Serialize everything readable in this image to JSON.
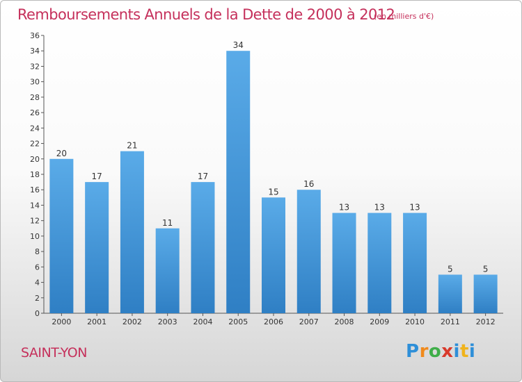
{
  "header": {
    "title": "Remboursements Annuels de la Dette de 2000 à 2012",
    "subtitle": "(en milliers d'€)"
  },
  "footer": {
    "place": "SAINT-YON",
    "logo_text": "Proxiti"
  },
  "colors": {
    "accent": "#c5305b",
    "bar_top": "#5aabe8",
    "bar_bottom": "#2f7fc4"
  },
  "chart_data": {
    "type": "bar",
    "categories": [
      "2000",
      "2001",
      "2002",
      "2003",
      "2004",
      "2005",
      "2006",
      "2007",
      "2008",
      "2009",
      "2010",
      "2011",
      "2012"
    ],
    "values": [
      20,
      17,
      21,
      11,
      17,
      34,
      15,
      16,
      13,
      13,
      13,
      5,
      5
    ],
    "title": "Remboursements Annuels de la Dette de 2000 à 2012",
    "subtitle": "(en milliers d'€)",
    "xlabel": "",
    "ylabel": "",
    "ylim": [
      0,
      36
    ],
    "yticks": [
      0,
      2,
      4,
      6,
      8,
      10,
      12,
      14,
      16,
      18,
      20,
      22,
      24,
      26,
      28,
      30,
      32,
      34,
      36
    ],
    "data_labels": true,
    "grid": false
  }
}
